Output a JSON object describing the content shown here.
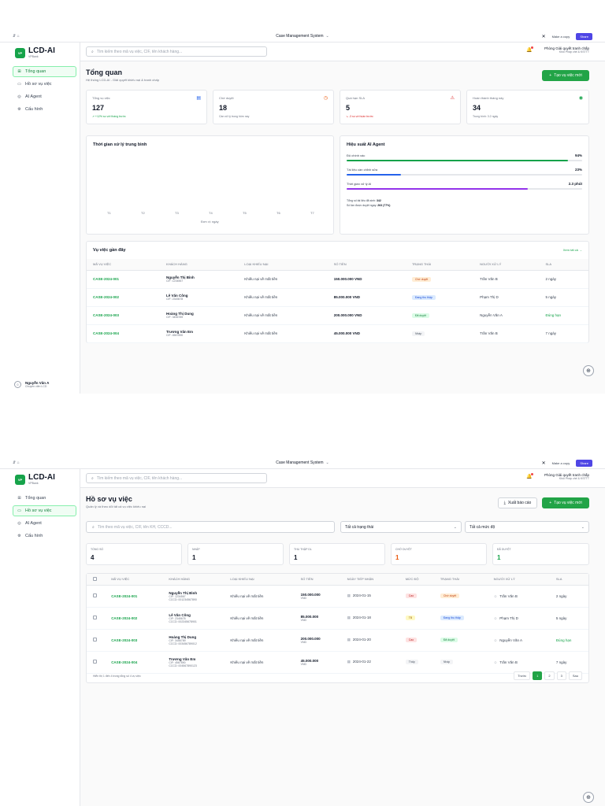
{
  "common": {
    "window_title": "Case Management System",
    "topbar_left": "⇵ ⌂",
    "make_copy": "Make a copy",
    "share": "Share",
    "logo_badge": "VP",
    "logo_title": "LCD-AI",
    "logo_sub": "VPBank",
    "search_placeholder": "Tìm kiếm theo mã vụ việc, CIF, tên khách hàng...",
    "dept_name": "Phòng Giải quyết tranh chấp",
    "dept_sub": "Khối Pháp chế & KSTTT",
    "nav": [
      {
        "label": "Tổng quan",
        "icon": "grid-icon"
      },
      {
        "label": "Hồ sơ vụ việc",
        "icon": "folder-icon"
      },
      {
        "label": "AI Agent",
        "icon": "robot-icon"
      },
      {
        "label": "Cấu hình",
        "icon": "gear-icon"
      }
    ],
    "user_name": "Nguyễn Văn A",
    "user_role": "Chuyên viên LCD",
    "colors": {
      "accent": "#22a447",
      "share": "#4f46e5"
    }
  },
  "dashboard": {
    "title": "Tổng quan",
    "subtitle": "Hệ thống LCD-AI - Giải quyết khiếu nại & tranh chấp",
    "new_case": "Tạo vụ việc mới",
    "stats": [
      {
        "label": "Tổng vụ việc",
        "value": "127",
        "note": "↗ +12% so với tháng trước",
        "icon": "document-icon",
        "tone": "green"
      },
      {
        "label": "Chờ duyệt",
        "value": "18",
        "note": "Cần xử lý trong hôm nay",
        "icon": "clock-icon",
        "tone": "gray"
      },
      {
        "label": "Quá hạn SLA",
        "value": "5",
        "note": "↘ -3 so với tuần trước",
        "icon": "warning-icon",
        "tone": "red"
      },
      {
        "label": "Hoàn thành tháng này",
        "value": "34",
        "note": "Trung bình: 3.2 ngày",
        "icon": "check-circle-icon",
        "tone": "gray"
      }
    ],
    "chart": {
      "title": "Thời gian xử lý trung bình",
      "xlabel": "Đơn vị: ngày",
      "categories": [
        "T1",
        "T2",
        "T3",
        "T4",
        "T5",
        "T6",
        "T7"
      ]
    },
    "ai": {
      "title": "Hiệu suất AI Agent",
      "metrics": [
        {
          "label": "Độ chính xác",
          "value": "94%",
          "fraction": 0.94,
          "color": "#16a34a"
        },
        {
          "label": "Tài liệu cần chỉnh sửa",
          "value": "23%",
          "fraction": 0.23,
          "color": "#2563eb"
        },
        {
          "label": "Thời gian xử lý AI",
          "value": "2.3 phút",
          "fraction": 0.77,
          "color": "#9333ea"
        }
      ],
      "footer1_label": "Tổng số tài liệu đã sinh:",
      "footer1_value": "342",
      "footer2_label": "Số lần được duyệt ngay:",
      "footer2_value": "263 (77%)"
    },
    "recent": {
      "title": "Vụ việc gần đây",
      "view_all": "Xem tất cả →",
      "headers": [
        "MÃ VỤ VIỆC",
        "KHÁCH HÀNG",
        "LOẠI KHIẾU NẠI",
        "SỐ TIỀN",
        "TRẠNG THÁI",
        "NGƯỜI XỬ LÝ",
        "SLA"
      ],
      "rows": [
        {
          "code": "CASE-2024-001",
          "name": "Nguyễn Thị Bình",
          "cif": "CIF: 1234567",
          "type": "Khiếu nại về mất tiền",
          "amount": "150.000.000 VND",
          "status": "Chờ duyệt",
          "status_class": "b-orange",
          "handler": "Trần Văn B",
          "sla": "2 ngày",
          "sla_class": ""
        },
        {
          "code": "CASE-2024-002",
          "name": "Lê Văn Công",
          "cif": "CIF: 2345678",
          "type": "Khiếu nại về mất tiền",
          "amount": "85.000.000 VND",
          "status": "Đang thu thập",
          "status_class": "b-blue",
          "handler": "Phạm Thị D",
          "sla": "5 ngày",
          "sla_class": ""
        },
        {
          "code": "CASE-2024-003",
          "name": "Hoàng Thị Dung",
          "cif": "CIF: 3456789",
          "type": "Khiếu nại về mất tiền",
          "amount": "200.000.000 VND",
          "status": "Đã duyệt",
          "status_class": "b-green",
          "handler": "Nguyễn Văn A",
          "sla": "Đúng hạn",
          "sla_class": "sla-green"
        },
        {
          "code": "CASE-2024-004",
          "name": "Trương Văn Em",
          "cif": "CIF: 4567890",
          "type": "Khiếu nại về mất tiền",
          "amount": "45.000.000 VND",
          "status": "Nháp",
          "status_class": "b-gray",
          "handler": "Trần Văn B",
          "sla": "7 ngày",
          "sla_class": ""
        }
      ]
    }
  },
  "cases": {
    "title": "Hồ sơ vụ việc",
    "subtitle": "Quản lý và theo dõi tất cả vụ việc khiếu nại",
    "export": "Xuất báo cáo",
    "new_case": "Tạo vụ việc mới",
    "filter_placeholder": "Tìm theo mã vụ việc, CIF, tên KH, CCCD...",
    "status_select": "Tất cả trạng thái",
    "level_select": "Tất cả mức độ",
    "stats": [
      {
        "label": "TỔNG SỐ",
        "value": "4",
        "color": "#111827"
      },
      {
        "label": "NHÁP",
        "value": "1",
        "color": "#111827"
      },
      {
        "label": "THU THẬP DL",
        "value": "1",
        "color": "#111827"
      },
      {
        "label": "CHỜ DUYỆT",
        "value": "1",
        "color": "#ea580c"
      },
      {
        "label": "ĐÃ DUYỆT",
        "value": "1",
        "color": "#16a34a"
      }
    ],
    "headers": [
      "MÃ VỤ VIỆC",
      "KHÁCH HÀNG",
      "LOẠI KHIẾU NẠI",
      "SỐ TIỀN",
      "NGÀY TIẾP NHẬN",
      "MỨC ĐỘ",
      "TRẠNG THÁI",
      "NGƯỜI XỬ LÝ",
      "SLA"
    ],
    "rows": [
      {
        "code": "CASE-2024-001",
        "name": "Nguyễn Thị Bình",
        "cif": "CIF: 1234567",
        "cccd": "CCCD: 001234567890",
        "type": "Khiếu nại về mất tiền",
        "amount": "150.000.000",
        "currency": "VND",
        "date": "2024-01-15",
        "level": "Cao",
        "level_class": "b-red",
        "status": "Chờ duyệt",
        "status_class": "b-orange",
        "handler": "Trần Văn B",
        "sla": "2 ngày",
        "sla_class": ""
      },
      {
        "code": "CASE-2024-002",
        "name": "Lê Văn Công",
        "cif": "CIF: 2345678",
        "cccd": "CCCD: 002345678901",
        "type": "Khiếu nại về mất tiền",
        "amount": "85.000.000",
        "currency": "VND",
        "date": "2024-01-18",
        "level": "TB",
        "level_class": "b-yellow",
        "status": "Đang thu thập",
        "status_class": "b-blue",
        "handler": "Phạm Thị D",
        "sla": "5 ngày",
        "sla_class": ""
      },
      {
        "code": "CASE-2024-003",
        "name": "Hoàng Thị Dung",
        "cif": "CIF: 3456789",
        "cccd": "CCCD: 003456789012",
        "type": "Khiếu nại về mất tiền",
        "amount": "200.000.000",
        "currency": "VND",
        "date": "2024-01-20",
        "level": "Cao",
        "level_class": "b-red",
        "status": "Đã duyệt",
        "status_class": "b-green",
        "handler": "Nguyễn Văn A",
        "sla": "Đúng hạn",
        "sla_class": "sla-green"
      },
      {
        "code": "CASE-2024-004",
        "name": "Trương Văn Em",
        "cif": "CIF: 4567890",
        "cccd": "CCCD: 004567890123",
        "type": "Khiếu nại về mất tiền",
        "amount": "45.000.000",
        "currency": "VND",
        "date": "2024-01-22",
        "level": "Thấp",
        "level_class": "b-gray",
        "status": "Nháp",
        "status_class": "b-gray",
        "handler": "Trần Văn B",
        "sla": "7 ngày",
        "sla_class": ""
      }
    ],
    "pagination_info": "Hiển thị 1 đến 4 trong tổng số 4 vụ việc",
    "pagination": {
      "prev": "Trước",
      "pages": [
        "1",
        "2",
        "3"
      ],
      "next": "Sau"
    }
  }
}
